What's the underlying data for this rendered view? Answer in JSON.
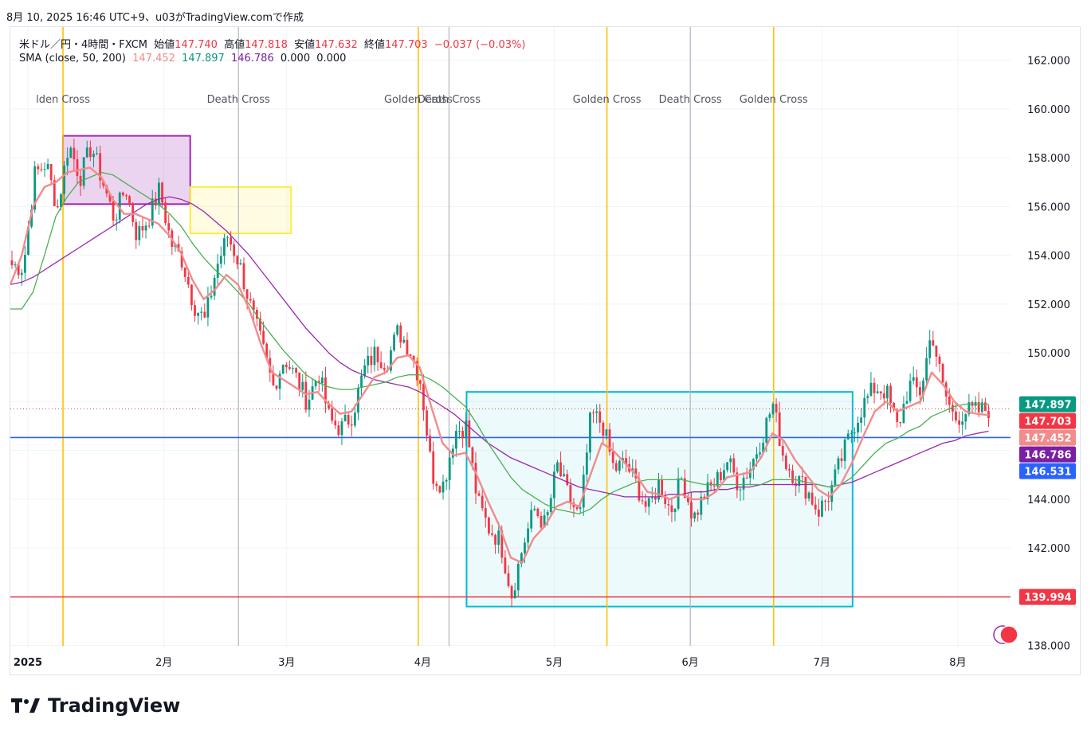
{
  "header": {
    "caption": "8月 10, 2025 16:46 UTC+9、u03がTradingView.comで作成"
  },
  "legend": {
    "symbol": "米ドル／円・4時間・FXCM",
    "open_label": "始値",
    "open": "147.740",
    "high_label": "高値",
    "high": "147.818",
    "low_label": "安値",
    "low": "147.632",
    "close_label": "終値",
    "close": "147.703",
    "change": "−0.037 (−0.03%)",
    "sma_title": "SMA (close, 50, 200)",
    "sma_values": [
      "147.452",
      "147.897",
      "146.786",
      "0.000",
      "0.000"
    ]
  },
  "logo_text": "TradingView",
  "colors": {
    "up": "#089981",
    "down": "#f23645",
    "sma_fast": "#f28b8b",
    "sma_50": "#4caf50",
    "sma_200": "#9c27b0",
    "golden_cross": "#ffc107",
    "death_cross": "#b2b5be",
    "support_red": "#f23645",
    "support_blue": "#2962ff",
    "box_purple": "#9c27b0",
    "box_yellow": "#ffeb3b",
    "box_cyan": "#00bcd4"
  },
  "chart_data": {
    "type": "candlestick",
    "y_axis": {
      "min": 137.5,
      "max": 163.0,
      "ticks": [
        "138.000",
        "140.000",
        "142.000",
        "144.000",
        "146.000",
        "148.000",
        "150.000",
        "152.000",
        "154.000",
        "156.000",
        "158.000",
        "160.000",
        "162.000"
      ]
    },
    "x_axis": {
      "labels": [
        "2025",
        "2月",
        "3月",
        "4月",
        "5月",
        "6月",
        "7月",
        "8月"
      ]
    },
    "price_labels": [
      {
        "value": 147.897,
        "text": "147.897",
        "color": "#089981"
      },
      {
        "value": 147.703,
        "text": "147.703",
        "color": "#f23645"
      },
      {
        "value": 147.452,
        "text": "147.452",
        "color": "#f28b8b"
      },
      {
        "value": 146.786,
        "text": "146.786",
        "color": "#7b1fa2"
      },
      {
        "value": 146.531,
        "text": "146.531",
        "color": "#2962ff"
      },
      {
        "value": 139.994,
        "text": "139.994",
        "color": "#f23645"
      }
    ],
    "horizontal_lines": [
      {
        "value": 146.531,
        "color": "#2962ff"
      },
      {
        "value": 139.994,
        "color": "#f23645"
      }
    ],
    "cross_events": [
      {
        "label": "Golden Cross",
        "display": "lden Cross",
        "kind": "golden",
        "date": "2025-01-09"
      },
      {
        "label": "Death Cross",
        "kind": "death",
        "date": "2025-02-18"
      },
      {
        "label": "Golden Cross",
        "kind": "golden",
        "date": "2025-03-31"
      },
      {
        "label": "Death Cross",
        "kind": "death",
        "date": "2025-04-07"
      },
      {
        "label": "Golden Cross",
        "kind": "golden",
        "date": "2025-05-13"
      },
      {
        "label": "Death Cross",
        "kind": "death",
        "date": "2025-06-01"
      },
      {
        "label": "Golden Cross",
        "kind": "golden",
        "date": "2025-06-20"
      }
    ],
    "rectangles": [
      {
        "color": "purple",
        "x0": "2025-01-09",
        "x1": "2025-02-07",
        "y0": 156.1,
        "y1": 158.9
      },
      {
        "color": "yellow",
        "x0": "2025-02-07",
        "x1": "2025-03-02",
        "y0": 154.9,
        "y1": 156.8
      },
      {
        "color": "cyan",
        "x0": "2025-04-11",
        "x1": "2025-07-08",
        "y0": 139.6,
        "y1": 148.4
      }
    ],
    "candle_path": [
      [
        153.6,
        153.5,
        157.3,
        157.8,
        155.9,
        158.6,
        157.2,
        158.5,
        157.0,
        155.5,
        156.8,
        154.8,
        155.5,
        156.7,
        154.5,
        153.8,
        152.0,
        151.3,
        153.5,
        154.8,
        153.7,
        151.9,
        150.3,
        148.6,
        149.8,
        149.0,
        148.0,
        149.2,
        147.2,
        146.9,
        147.5,
        149.3,
        150.0,
        149.6,
        150.9,
        150.2,
        148.8,
        145.0,
        144.6,
        146.8,
        147.0,
        143.9,
        142.8,
        142.3,
        140.1,
        142.1,
        143.6,
        142.9,
        145.4,
        144.1,
        143.2,
        147.5,
        147.1,
        145.2,
        145.5,
        144.6,
        143.5,
        144.7,
        143.5,
        144.9,
        143.2,
        144.2,
        144.7,
        145.6,
        144.6,
        145.3,
        146.5,
        147.9,
        145.6,
        144.9,
        144.4,
        143.5,
        144.2,
        145.6,
        146.9,
        147.9,
        148.6,
        148.4,
        146.9,
        148.7,
        148.4,
        150.9,
        148.5,
        147.3,
        147.6,
        147.6,
        147.7
      ]
    ],
    "sma_fast": [
      152.8,
      154.0,
      156.0,
      156.8,
      157.0,
      157.4,
      157.5,
      157.6,
      157.2,
      156.3,
      155.7,
      155.7,
      155.5,
      155.3,
      154.8,
      154.1,
      153.0,
      152.2,
      152.6,
      153.2,
      152.8,
      151.8,
      150.4,
      149.2,
      148.9,
      148.6,
      148.3,
      148.4,
      147.9,
      147.5,
      147.6,
      148.3,
      149.0,
      149.2,
      149.8,
      149.9,
      149.4,
      147.8,
      146.3,
      145.8,
      145.9,
      145.0,
      143.9,
      142.9,
      141.6,
      141.4,
      142.4,
      142.9,
      143.7,
      143.9,
      143.7,
      145.0,
      146.3,
      146.0,
      145.5,
      145.0,
      144.3,
      144.2,
      144.0,
      144.2,
      144.0,
      144.0,
      144.3,
      144.9,
      145.0,
      145.1,
      145.7,
      146.7,
      146.4,
      145.6,
      145.0,
      144.4,
      144.1,
      144.6,
      145.5,
      146.6,
      147.6,
      148.0,
      147.6,
      147.8,
      148.0,
      149.2,
      148.7,
      148.0,
      147.6,
      147.5,
      147.45
    ],
    "sma_50": [
      151.8,
      151.8,
      152.5,
      154.0,
      155.6,
      156.4,
      157.0,
      157.2,
      157.4,
      157.3,
      157.0,
      156.7,
      156.4,
      156.1,
      155.7,
      155.2,
      154.5,
      153.9,
      153.4,
      153.0,
      152.5,
      152.0,
      151.3,
      150.7,
      150.1,
      149.6,
      149.1,
      148.8,
      148.6,
      148.5,
      148.5,
      148.6,
      148.7,
      148.8,
      149.0,
      149.1,
      149.1,
      148.9,
      148.6,
      148.2,
      147.8,
      147.1,
      146.3,
      145.6,
      144.9,
      144.4,
      144.1,
      143.8,
      143.6,
      143.5,
      143.4,
      143.6,
      144.0,
      144.3,
      144.5,
      144.7,
      144.8,
      144.8,
      144.8,
      144.8,
      144.7,
      144.6,
      144.6,
      144.6,
      144.6,
      144.6,
      144.6,
      144.8,
      144.8,
      144.8,
      144.7,
      144.6,
      144.5,
      144.6,
      144.9,
      145.4,
      145.9,
      146.3,
      146.5,
      146.8,
      147.0,
      147.4,
      147.6,
      147.8,
      147.9,
      147.9,
      147.9
    ],
    "sma_200": [
      152.8,
      152.9,
      153.1,
      153.4,
      153.7,
      154.0,
      154.3,
      154.6,
      154.9,
      155.2,
      155.5,
      155.8,
      156.1,
      156.3,
      156.4,
      156.3,
      156.1,
      155.8,
      155.4,
      155.0,
      154.5,
      154.0,
      153.4,
      152.8,
      152.2,
      151.6,
      151.0,
      150.5,
      150.0,
      149.6,
      149.3,
      149.1,
      148.9,
      148.8,
      148.7,
      148.6,
      148.4,
      148.1,
      147.8,
      147.5,
      147.1,
      146.7,
      146.3,
      146.0,
      145.7,
      145.5,
      145.3,
      145.1,
      144.9,
      144.7,
      144.5,
      144.4,
      144.3,
      144.2,
      144.1,
      144.1,
      144.1,
      144.1,
      144.2,
      144.2,
      144.3,
      144.3,
      144.4,
      144.4,
      144.5,
      144.5,
      144.6,
      144.6,
      144.6,
      144.6,
      144.6,
      144.6,
      144.5,
      144.6,
      144.7,
      144.9,
      145.1,
      145.3,
      145.5,
      145.7,
      145.9,
      146.1,
      146.3,
      146.4,
      146.6,
      146.7,
      146.79
    ]
  }
}
